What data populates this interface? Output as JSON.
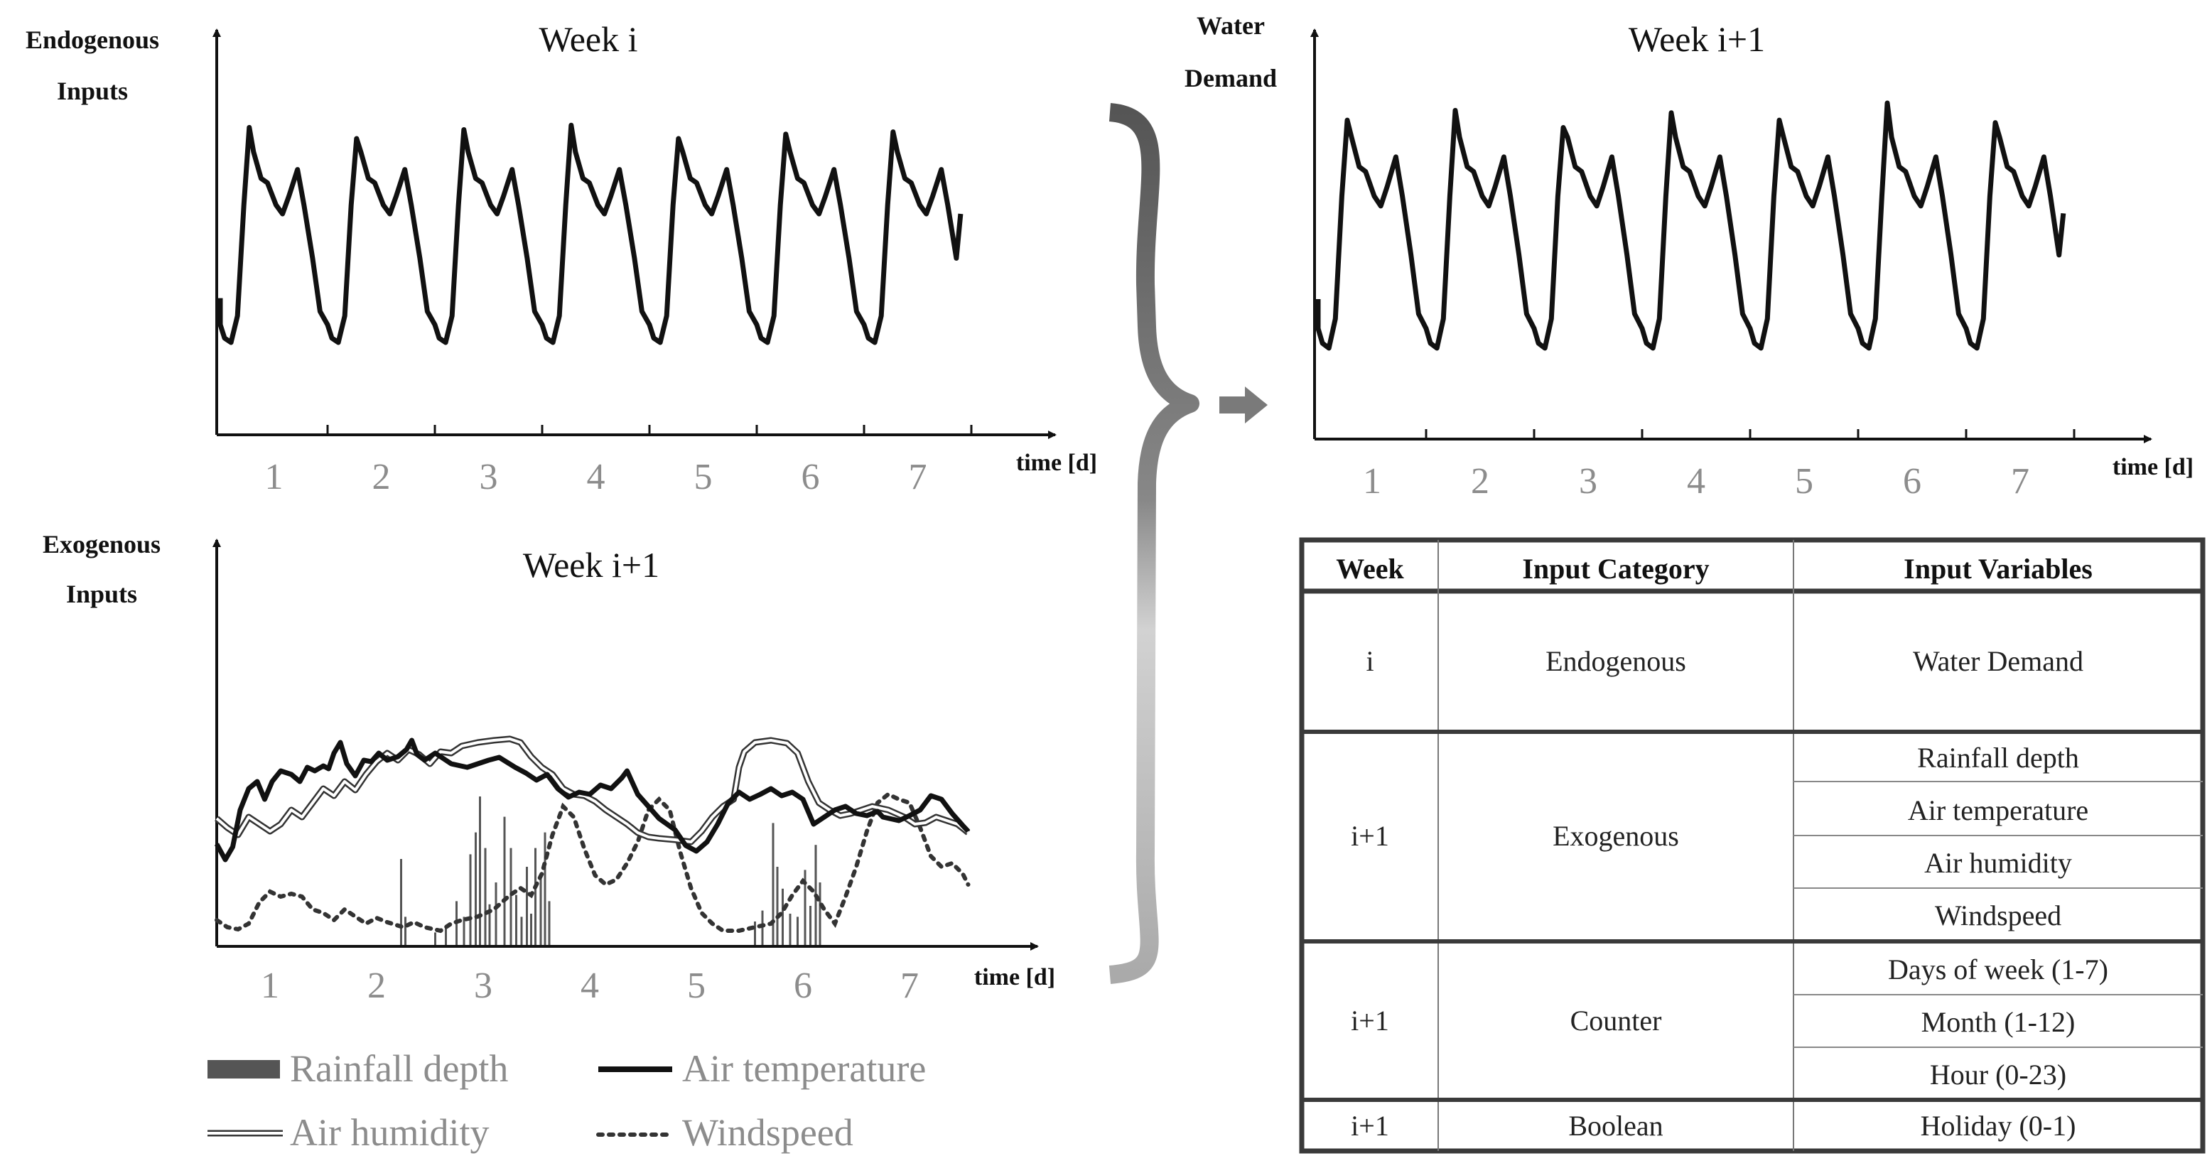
{
  "top_left": {
    "y_label": [
      "Endogenous",
      "Inputs"
    ],
    "title": "Week i",
    "x_label": "time [d]",
    "ticks": [
      "1",
      "2",
      "3",
      "4",
      "5",
      "6",
      "7"
    ]
  },
  "top_right": {
    "y_label": [
      "Water",
      "Demand"
    ],
    "title": "Week i+1",
    "x_label": "time [d]",
    "ticks": [
      "1",
      "2",
      "3",
      "4",
      "5",
      "6",
      "7"
    ]
  },
  "bottom_left": {
    "y_label": [
      "Exogenous",
      "Inputs"
    ],
    "title": "Week i+1",
    "x_label": "time [d]",
    "ticks": [
      "1",
      "2",
      "3",
      "4",
      "5",
      "6",
      "7"
    ]
  },
  "legend": {
    "rainfall": "Rainfall depth",
    "temperature": "Air temperature",
    "humidity": "Air humidity",
    "windspeed": "Windspeed"
  },
  "table": {
    "headers": [
      "Week",
      "Input Category",
      "Input Variables"
    ],
    "groups": [
      {
        "week": "i",
        "category": "Endogenous",
        "variables": [
          "Water Demand"
        ]
      },
      {
        "week": "i+1",
        "category": "Exogenous",
        "variables": [
          "Rainfall depth",
          "Air temperature",
          "Air humidity",
          "Windspeed"
        ]
      },
      {
        "week": "i+1",
        "category": "Counter",
        "variables": [
          "Days of week (1-7)",
          "Month (1-12)",
          "Hour (0-23)"
        ]
      },
      {
        "week": "i+1",
        "category": "Boolean",
        "variables": [
          "Holiday (0-1)"
        ]
      }
    ]
  },
  "colors": {
    "line": "#111111",
    "tick_gray": "#8c8c8c",
    "rain_bar": "#555555",
    "brace_dark": "#666666",
    "brace_light": "#bdbdbd",
    "arrow": "#7a7a7a",
    "table_border": "#3a3a3a"
  }
}
